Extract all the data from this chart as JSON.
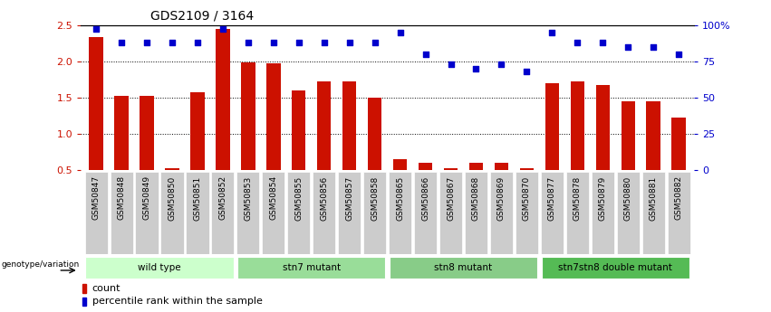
{
  "title": "GDS2109 / 3164",
  "samples": [
    "GSM50847",
    "GSM50848",
    "GSM50849",
    "GSM50850",
    "GSM50851",
    "GSM50852",
    "GSM50853",
    "GSM50854",
    "GSM50855",
    "GSM50856",
    "GSM50857",
    "GSM50858",
    "GSM50865",
    "GSM50866",
    "GSM50867",
    "GSM50868",
    "GSM50869",
    "GSM50870",
    "GSM50877",
    "GSM50878",
    "GSM50879",
    "GSM50880",
    "GSM50881",
    "GSM50882"
  ],
  "counts": [
    2.33,
    1.52,
    1.52,
    0.52,
    1.57,
    2.44,
    1.99,
    1.97,
    1.6,
    1.72,
    1.72,
    1.5,
    0.65,
    0.6,
    0.52,
    0.6,
    0.6,
    0.52,
    1.7,
    1.72,
    1.67,
    1.45,
    1.45,
    1.22
  ],
  "percentile": [
    97,
    88,
    88,
    88,
    88,
    97,
    88,
    88,
    88,
    88,
    88,
    88,
    95,
    80,
    73,
    70,
    73,
    68,
    95,
    88,
    88,
    85,
    85,
    80
  ],
  "groups": [
    {
      "label": "wild type",
      "start": 0,
      "end": 5
    },
    {
      "label": "stn7 mutant",
      "start": 6,
      "end": 11
    },
    {
      "label": "stn8 mutant",
      "start": 12,
      "end": 17
    },
    {
      "label": "stn7stn8 double mutant",
      "start": 18,
      "end": 23
    }
  ],
  "group_colors": [
    "#ccffcc",
    "#99dd99",
    "#88cc88",
    "#55bb55"
  ],
  "ylim_left": [
    0.5,
    2.5
  ],
  "ylim_right": [
    0,
    100
  ],
  "yticks_left": [
    0.5,
    1.0,
    1.5,
    2.0,
    2.5
  ],
  "yticks_right": [
    0,
    25,
    50,
    75,
    100
  ],
  "ytick_right_labels": [
    "0",
    "25",
    "50",
    "75",
    "100%"
  ],
  "bar_color": "#cc1100",
  "dot_color": "#0000cc",
  "bg_color": "#ffffff",
  "tick_bg_color": "#cccccc",
  "plot_bg_color": "#ffffff",
  "title_fontsize": 10,
  "legend_count_label": "count",
  "legend_pct_label": "percentile rank within the sample",
  "genotype_label": "genotype/variation"
}
